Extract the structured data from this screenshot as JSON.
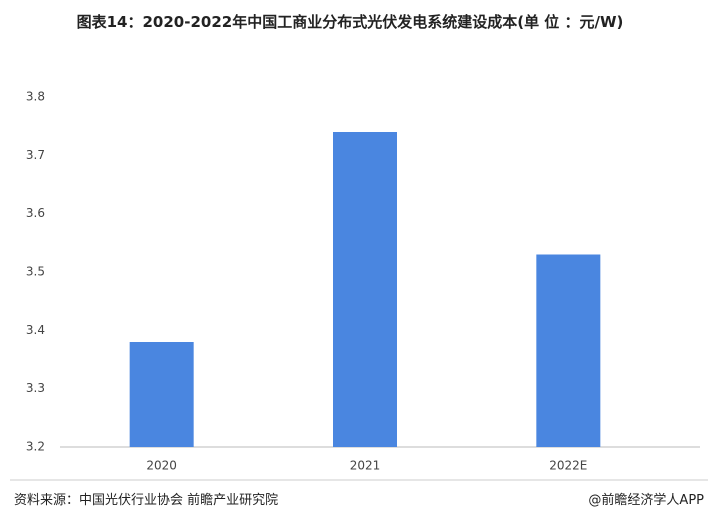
{
  "chart_data": {
    "type": "bar",
    "title": "图表14：2020-2022年中国工商业分布式光伏发电系统建设成本(单 位 ：元/W)",
    "categories": [
      "2020",
      "2021",
      "2022E"
    ],
    "values": [
      3.38,
      3.74,
      3.53
    ],
    "color": "#4a86e0",
    "ylim": [
      3.2,
      3.8
    ],
    "yticks": [
      3.2,
      3.3,
      3.4,
      3.5,
      3.6,
      3.7,
      3.8
    ],
    "grid": false,
    "source": "资料来源：中国光伏行业协会 前瞻产业研究院",
    "credit": "@前瞻经济学人APP"
  }
}
